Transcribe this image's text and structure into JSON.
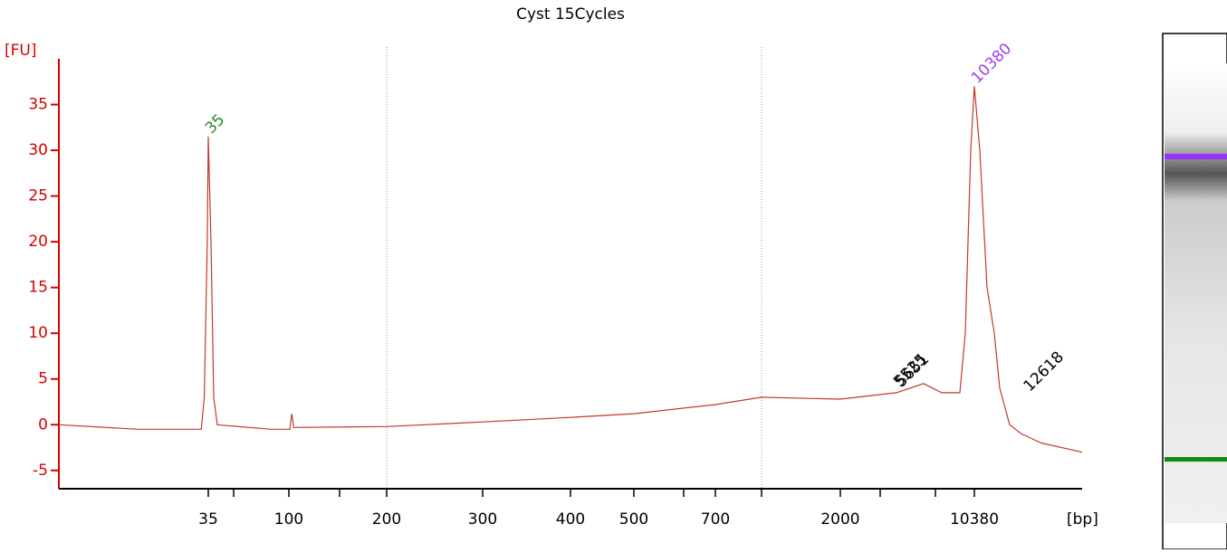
{
  "chart_data": {
    "type": "line",
    "title": "Cyst 15Cycles",
    "y_label": "[FU]",
    "x_label": "[bp]",
    "x": [
      20,
      28,
      34.3,
      34.6,
      34.9,
      35,
      37.2,
      39.4,
      42.3,
      86,
      101,
      103,
      105,
      200,
      300,
      400,
      500,
      700,
      1180,
      2000,
      5511,
      7208,
      8338,
      9474,
      9814,
      10154,
      10380,
      10613,
      10923,
      11234,
      11466,
      11893,
      12398,
      13251,
      15000
    ],
    "values": [
      0,
      -0.5,
      -0.5,
      3,
      20,
      31.5,
      20,
      3,
      0,
      -0.5,
      -0.5,
      1.2,
      -0.3,
      -0.2,
      0.3,
      0.8,
      1.2,
      2.2,
      3,
      2.8,
      3.5,
      4.5,
      3.5,
      3.5,
      10,
      30,
      37,
      30,
      15,
      10,
      4,
      0,
      -1,
      -2,
      -3
    ],
    "color": "#c0392b",
    "axis_color": "#d40000",
    "xlim": [
      20,
      15000
    ],
    "xticks": [
      35,
      100,
      200,
      300,
      400,
      500,
      700,
      2000,
      10380
    ],
    "ylim": [
      -7,
      40
    ],
    "yticks": [
      -5,
      0,
      5,
      10,
      15,
      20,
      25,
      30,
      35
    ],
    "peaks": [
      {
        "x": 35,
        "y": 31.5,
        "color": "#228b22"
      },
      {
        "x": 5525,
        "y": 3.8,
        "color": "#000000"
      },
      {
        "x": 5651,
        "y": 3.8,
        "color": "#000000"
      },
      {
        "x": 10380,
        "y": 37,
        "color": "#a040f0"
      },
      {
        "x": 12618,
        "y": 3.3,
        "color": "#000000"
      }
    ]
  }
}
